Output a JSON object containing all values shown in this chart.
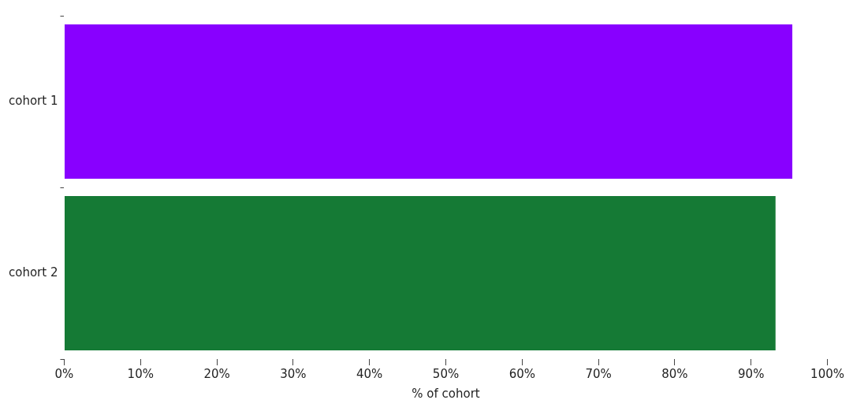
{
  "chart_data": {
    "type": "bar",
    "orientation": "horizontal",
    "xlabel": "% of cohort",
    "categories": [
      "cohort 1",
      "cohort 2"
    ],
    "values": [
      95.4,
      93.2
    ],
    "colors": [
      "#8800ff",
      "#157a35"
    ],
    "xlim": [
      0,
      100
    ],
    "xticks": [
      {
        "value": 0,
        "label": "0%"
      },
      {
        "value": 10,
        "label": "10%"
      },
      {
        "value": 20,
        "label": "20%"
      },
      {
        "value": 30,
        "label": "30%"
      },
      {
        "value": 40,
        "label": "40%"
      },
      {
        "value": 50,
        "label": "50%"
      },
      {
        "value": 60,
        "label": "60%"
      },
      {
        "value": 70,
        "label": "70%"
      },
      {
        "value": 80,
        "label": "80%"
      },
      {
        "value": 90,
        "label": "90%"
      },
      {
        "value": 100,
        "label": "100%"
      }
    ],
    "grid": false,
    "legend": false
  }
}
